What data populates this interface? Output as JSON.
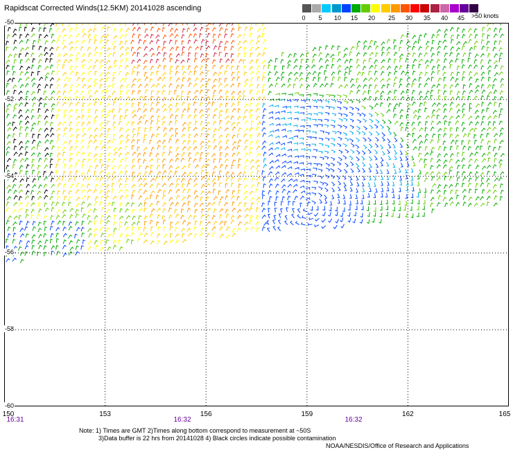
{
  "title": "Rapidscat Corrected Winds(12.5KM) 20141028 ascending",
  "legend": {
    "colors": [
      "#555555",
      "#aaaaaa",
      "#00ccff",
      "#0099cc",
      "#0044ff",
      "#00aa00",
      "#66cc00",
      "#ffff00",
      "#ffcc00",
      "#ff9900",
      "#ff5500",
      "#ff0000",
      "#cc0000",
      "#aa2244",
      "#cc66aa",
      "#aa00cc",
      "#660099",
      "#330044"
    ],
    "ticks": [
      "0",
      "5",
      "10",
      "15",
      "20",
      "25",
      "30",
      "35",
      "40",
      "45",
      ">50 knots"
    ],
    "unit_label": ">50 knots"
  },
  "axes": {
    "lat_labels": [
      "-50",
      "-52",
      "-54",
      "-56",
      "-58",
      "-60"
    ],
    "lon_labels": [
      "150",
      "153",
      "156",
      "159",
      "162",
      "165"
    ],
    "lat_range": [
      -60,
      -50
    ],
    "lon_range": [
      150,
      165
    ]
  },
  "times": [
    "16:31",
    "16:32",
    "16:32"
  ],
  "notes": {
    "line1": "Note: 1) Times are GMT 2)Times along bottom correspond to measurement at ~50S",
    "line2": "3)Data buffer is 22 hrs from 20141028 4) Black circles indicate possible contamination",
    "credit": "NOAA/NESDIS/Office of Research and Applications"
  }
}
